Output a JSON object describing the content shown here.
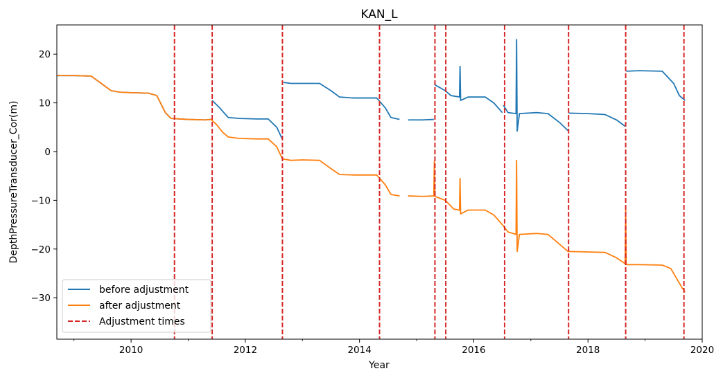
{
  "chart_data": {
    "type": "line",
    "title": "KAN_L",
    "xlabel": "Year",
    "ylabel": "DepthPressureTransducer_Cor(m)",
    "xlim": [
      2008.7,
      2020.0
    ],
    "ylim": [
      -38.5,
      26.0
    ],
    "xticks": [
      2010,
      2012,
      2014,
      2016,
      2018,
      2020
    ],
    "xticks_minor": [
      2009,
      2011,
      2013,
      2015,
      2017,
      2019
    ],
    "yticks": [
      20,
      10,
      0,
      -10,
      -20,
      -30
    ],
    "grid": false,
    "legend_position": "lower-left",
    "colors": {
      "before": "#1f77b4",
      "after": "#ff7f0e",
      "adjust": "#d62728"
    },
    "series": [
      {
        "name": "before adjustment",
        "key": "before",
        "segments": [
          [
            [
              2008.7,
              15.6
            ],
            [
              2009.0,
              15.6
            ],
            [
              2009.3,
              15.5
            ],
            [
              2009.5,
              13.8
            ],
            [
              2009.65,
              12.5
            ],
            [
              2009.8,
              12.2
            ],
            [
              2010.0,
              12.1
            ],
            [
              2010.3,
              12.0
            ],
            [
              2010.45,
              11.5
            ],
            [
              2010.6,
              8.0
            ],
            [
              2010.7,
              6.8
            ],
            [
              2011.0,
              6.6
            ],
            [
              2011.3,
              6.5
            ],
            [
              2011.4,
              6.6
            ]
          ],
          [
            [
              2011.42,
              10.5
            ],
            [
              2011.55,
              9.0
            ],
            [
              2011.7,
              7.0
            ],
            [
              2011.9,
              6.8
            ],
            [
              2012.2,
              6.7
            ],
            [
              2012.4,
              6.7
            ],
            [
              2012.55,
              5.0
            ],
            [
              2012.65,
              2.5
            ]
          ],
          [
            [
              2012.67,
              14.2
            ],
            [
              2012.8,
              14.0
            ],
            [
              2013.0,
              14.0
            ],
            [
              2013.3,
              14.0
            ],
            [
              2013.5,
              12.5
            ],
            [
              2013.65,
              11.2
            ],
            [
              2013.9,
              11.0
            ],
            [
              2014.1,
              11.0
            ],
            [
              2014.3,
              11.0
            ],
            [
              2014.45,
              9.0
            ],
            [
              2014.55,
              7.0
            ],
            [
              2014.7,
              6.6
            ]
          ],
          [
            [
              2014.85,
              6.5
            ],
            [
              2015.1,
              6.5
            ],
            [
              2015.3,
              6.6
            ]
          ],
          [
            [
              2015.32,
              13.7
            ],
            [
              2015.5,
              12.5
            ],
            [
              2015.6,
              11.5
            ],
            [
              2015.75,
              11.2
            ],
            [
              2015.76,
              17.5
            ],
            [
              2015.77,
              10.5
            ],
            [
              2015.9,
              11.2
            ],
            [
              2016.2,
              11.2
            ],
            [
              2016.35,
              10.0
            ],
            [
              2016.5,
              8.0
            ]
          ],
          [
            [
              2016.52,
              9.5
            ],
            [
              2016.6,
              8.0
            ],
            [
              2016.74,
              7.8
            ],
            [
              2016.75,
              23.0
            ],
            [
              2016.76,
              4.2
            ],
            [
              2016.8,
              7.8
            ],
            [
              2017.1,
              8.0
            ],
            [
              2017.3,
              7.8
            ],
            [
              2017.5,
              6.0
            ],
            [
              2017.65,
              4.3
            ]
          ],
          [
            [
              2017.66,
              7.9
            ],
            [
              2018.0,
              7.8
            ],
            [
              2018.3,
              7.6
            ],
            [
              2018.5,
              6.5
            ],
            [
              2018.65,
              5.2
            ]
          ],
          [
            [
              2018.67,
              16.5
            ],
            [
              2018.9,
              16.6
            ],
            [
              2019.3,
              16.5
            ],
            [
              2019.5,
              14.0
            ],
            [
              2019.6,
              11.5
            ],
            [
              2019.7,
              10.5
            ]
          ]
        ]
      },
      {
        "name": "after adjustment",
        "key": "after",
        "segments": [
          [
            [
              2008.7,
              15.6
            ],
            [
              2009.0,
              15.6
            ],
            [
              2009.3,
              15.5
            ],
            [
              2009.5,
              13.8
            ],
            [
              2009.65,
              12.5
            ],
            [
              2009.8,
              12.2
            ],
            [
              2010.0,
              12.1
            ],
            [
              2010.3,
              12.0
            ],
            [
              2010.45,
              11.5
            ],
            [
              2010.6,
              8.0
            ],
            [
              2010.7,
              6.8
            ],
            [
              2011.0,
              6.6
            ],
            [
              2011.3,
              6.5
            ],
            [
              2011.4,
              6.6
            ],
            [
              2011.5,
              5.5
            ],
            [
              2011.6,
              4.0
            ],
            [
              2011.7,
              3.0
            ],
            [
              2011.9,
              2.7
            ],
            [
              2012.2,
              2.6
            ],
            [
              2012.4,
              2.6
            ],
            [
              2012.55,
              1.0
            ],
            [
              2012.65,
              -1.5
            ],
            [
              2012.8,
              -1.8
            ],
            [
              2013.0,
              -1.7
            ],
            [
              2013.3,
              -1.8
            ],
            [
              2013.5,
              -3.5
            ],
            [
              2013.65,
              -4.7
            ],
            [
              2013.9,
              -4.8
            ],
            [
              2014.3,
              -4.8
            ],
            [
              2014.45,
              -6.8
            ],
            [
              2014.55,
              -8.8
            ],
            [
              2014.7,
              -9.1
            ]
          ],
          [
            [
              2014.85,
              -9.1
            ],
            [
              2015.1,
              -9.2
            ],
            [
              2015.3,
              -9.1
            ],
            [
              2015.31,
              -2.0
            ],
            [
              2015.32,
              -9.2
            ],
            [
              2015.5,
              -10.0
            ],
            [
              2015.65,
              -11.8
            ],
            [
              2015.75,
              -12.0
            ],
            [
              2015.76,
              -5.5
            ],
            [
              2015.77,
              -12.8
            ],
            [
              2015.9,
              -12.0
            ],
            [
              2016.2,
              -12.0
            ],
            [
              2016.35,
              -13.0
            ],
            [
              2016.5,
              -15.0
            ],
            [
              2016.6,
              -16.5
            ],
            [
              2016.74,
              -17.0
            ],
            [
              2016.75,
              -1.8
            ],
            [
              2016.76,
              -20.5
            ],
            [
              2016.8,
              -17.0
            ],
            [
              2017.1,
              -16.8
            ],
            [
              2017.3,
              -17.0
            ],
            [
              2017.5,
              -19.0
            ],
            [
              2017.65,
              -20.5
            ],
            [
              2018.0,
              -20.6
            ],
            [
              2018.3,
              -20.7
            ],
            [
              2018.5,
              -21.8
            ],
            [
              2018.65,
              -23.0
            ],
            [
              2018.66,
              -11.5
            ],
            [
              2018.67,
              -23.2
            ],
            [
              2018.9,
              -23.2
            ],
            [
              2019.3,
              -23.3
            ],
            [
              2019.45,
              -24.0
            ],
            [
              2019.55,
              -26.0
            ],
            [
              2019.65,
              -28.0
            ],
            [
              2019.7,
              -28.8
            ]
          ]
        ]
      },
      {
        "name": "Adjustment times",
        "key": "adjust",
        "x": [
          2010.76,
          2011.42,
          2012.65,
          2014.35,
          2015.32,
          2015.51,
          2016.54,
          2017.66,
          2018.66,
          2019.68
        ]
      }
    ]
  }
}
